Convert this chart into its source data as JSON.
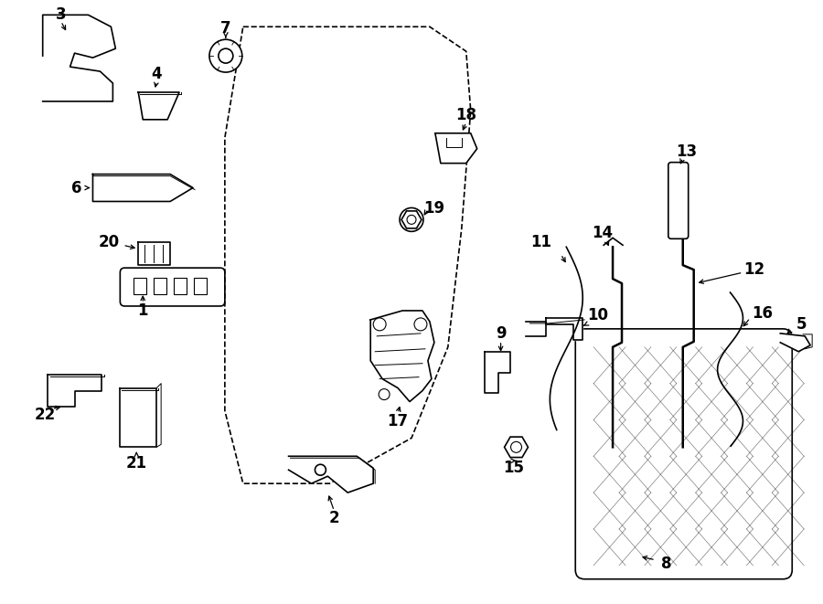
{
  "bg_color": "#ffffff",
  "line_color": "#000000",
  "fig_width": 9.0,
  "fig_height": 6.61,
  "lw": 1.2
}
